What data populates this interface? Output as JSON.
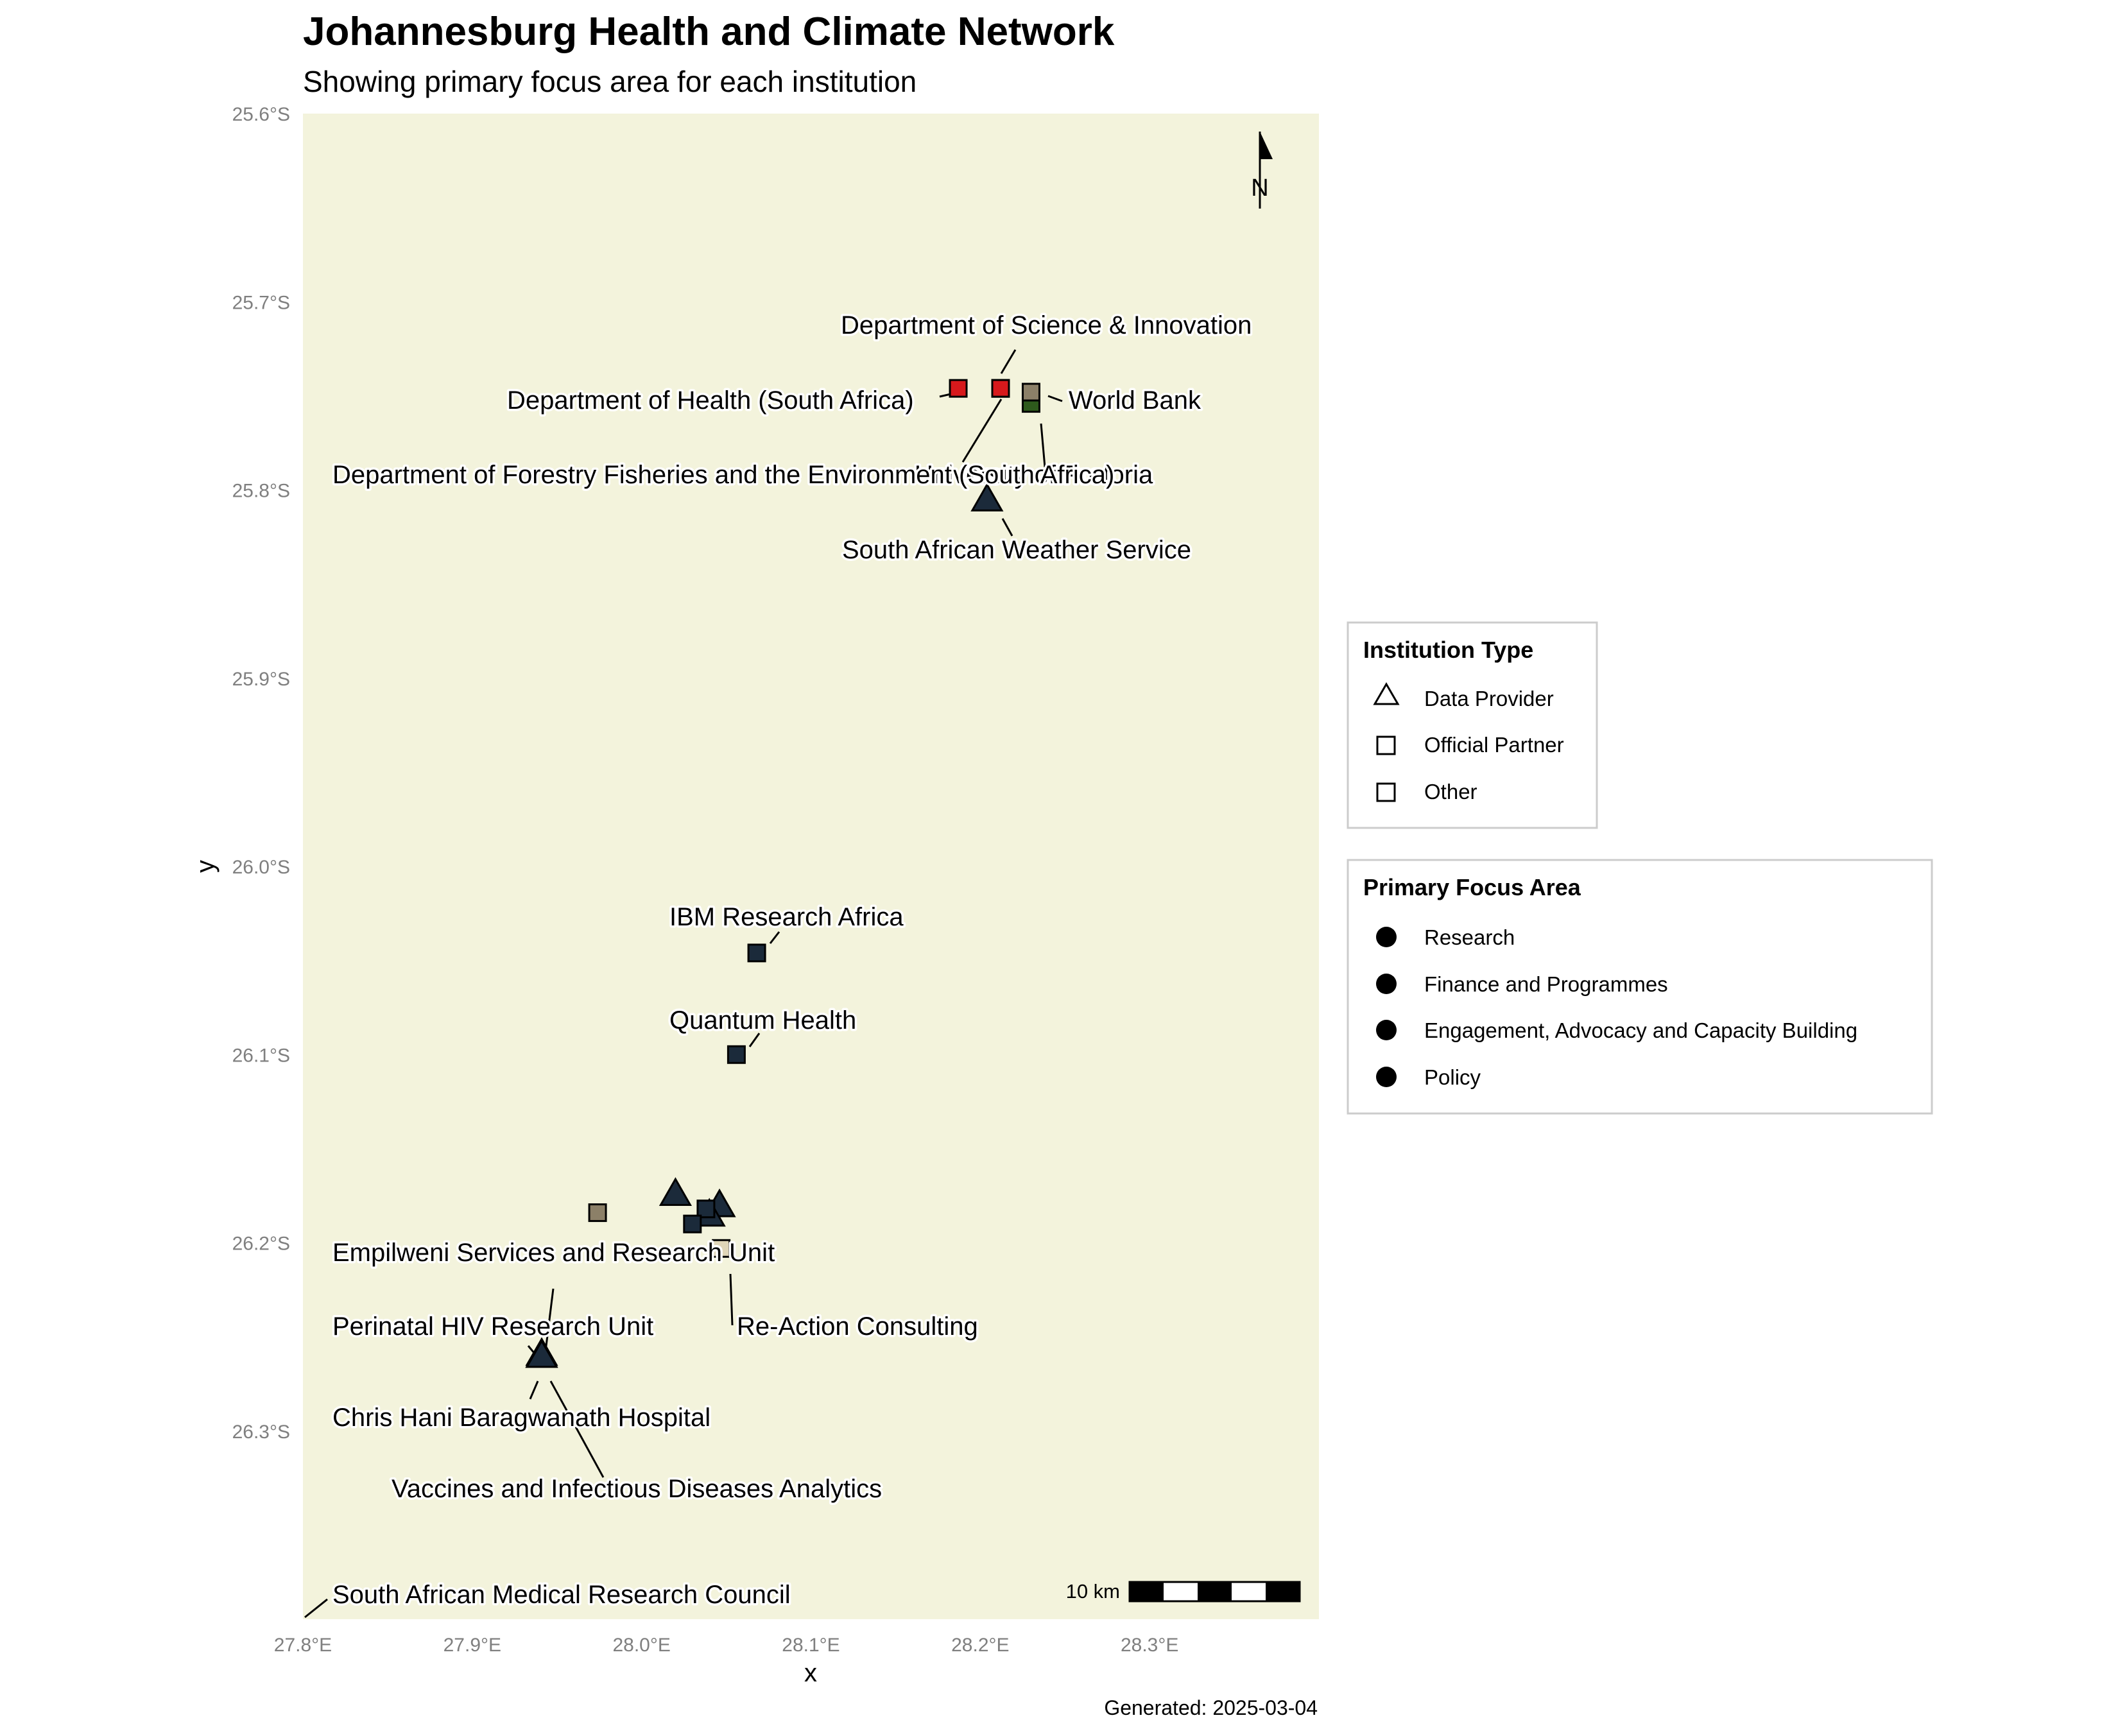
{
  "title": "Johannesburg Health and Climate Network",
  "subtitle": "Showing primary focus area for each institution",
  "caption": "Generated: 2025-03-04",
  "axes": {
    "x_title": "x",
    "y_title": "y",
    "lon_range": [
      27.8,
      28.4
    ],
    "lat_range": [
      -26.4,
      -25.6
    ],
    "x_ticks": [
      {
        "value": 27.8,
        "label": "27.8°E"
      },
      {
        "value": 27.9,
        "label": "27.9°E"
      },
      {
        "value": 28.0,
        "label": "28.0°E"
      },
      {
        "value": 28.1,
        "label": "28.1°E"
      },
      {
        "value": 28.2,
        "label": "28.2°E"
      },
      {
        "value": 28.3,
        "label": "28.3°E"
      }
    ],
    "y_ticks": [
      {
        "value": -25.6,
        "label": "25.6°S"
      },
      {
        "value": -25.7,
        "label": "25.7°S"
      },
      {
        "value": -25.8,
        "label": "25.8°S"
      },
      {
        "value": -25.9,
        "label": "25.9°S"
      },
      {
        "value": -26.0,
        "label": "26.0°S"
      },
      {
        "value": -26.1,
        "label": "26.1°S"
      },
      {
        "value": -26.2,
        "label": "26.2°S"
      },
      {
        "value": -26.3,
        "label": "26.3°S"
      }
    ]
  },
  "colors": {
    "panel_background": "#f3f3dc",
    "navy": "#1b2a3a",
    "red": "#d7191c",
    "taupe": "#8c8068",
    "green": "#2e5a1c",
    "beige": "#e0d6b8"
  },
  "north_arrow": {
    "label": "N"
  },
  "scale_bar": {
    "label": "10 km"
  },
  "institutions": [
    {
      "name": "Department of Science & Innovation",
      "lon": 28.212,
      "lat": -25.746,
      "type": "Official Partner",
      "color": "#d7191c"
    },
    {
      "name": "Department of Health (South Africa)",
      "lon": 28.187,
      "lat": -25.746,
      "type": "Official Partner",
      "color": "#d7191c"
    },
    {
      "name": "World Bank",
      "lon": 28.23,
      "lat": -25.748,
      "type": "Other",
      "color": "#8c8068"
    },
    {
      "name": "University of Pretoria",
      "lon": 28.23,
      "lat": -25.754,
      "type": "Other",
      "color": "#2e5a1c"
    },
    {
      "name": "Department of Forestry Fisheries and the Environment (South Africa)",
      "lon": 28.212,
      "lat": -25.746,
      "type": "Official Partner",
      "color": "#d7191c"
    },
    {
      "name": "South African Weather Service",
      "lon": 28.204,
      "lat": -25.805,
      "type": "Data Provider",
      "color": "#1b2a3a"
    },
    {
      "name": "IBM Research Africa",
      "lon": 28.068,
      "lat": -26.046,
      "type": "Official Partner",
      "color": "#1b2a3a"
    },
    {
      "name": "Quantum Health",
      "lon": 28.056,
      "lat": -26.1,
      "type": "Official Partner",
      "color": "#1b2a3a"
    },
    {
      "name": "Empilweni Services and Research Unit",
      "lon": 27.974,
      "lat": -26.184,
      "type": "Other",
      "color": "#8c8068"
    },
    {
      "name": "Re-Action Consulting",
      "lon": 28.047,
      "lat": -26.203,
      "type": "Other",
      "color": "#e0d6b8"
    },
    {
      "name": "Perinatal HIV Research Unit",
      "lon": 27.941,
      "lat": -26.259,
      "type": "Data Provider",
      "color": "#1b2a3a"
    },
    {
      "name": "Chris Hani Baragwanath Hospital",
      "lon": 27.941,
      "lat": -26.26,
      "type": "Data Provider",
      "color": "#1b2a3a"
    },
    {
      "name": "Vaccines and Infectious Diseases Analytics",
      "lon": 27.941,
      "lat": -26.26,
      "type": "Data Provider",
      "color": "#1b2a3a"
    },
    {
      "name": "South African Medical Research Council",
      "lon": 27.8,
      "lat": -26.4,
      "type": "Other",
      "color": "#1b2a3a"
    },
    {
      "name": "",
      "lon": 28.02,
      "lat": -26.174,
      "type": "Data Provider",
      "color": "#1b2a3a"
    },
    {
      "name": "",
      "lon": 28.046,
      "lat": -26.18,
      "type": "Data Provider",
      "color": "#1b2a3a"
    },
    {
      "name": "",
      "lon": 28.04,
      "lat": -26.185,
      "type": "Data Provider",
      "color": "#1b2a3a"
    },
    {
      "name": "",
      "lon": 28.038,
      "lat": -26.182,
      "type": "Official Partner",
      "color": "#1b2a3a"
    },
    {
      "name": "",
      "lon": 28.03,
      "lat": -26.19,
      "type": "Official Partner",
      "color": "#1b2a3a"
    }
  ],
  "legend_type": {
    "title": "Institution Type",
    "items": [
      {
        "label": "Data Provider",
        "shape": "triangle"
      },
      {
        "label": "Official Partner",
        "shape": "square"
      },
      {
        "label": "Other",
        "shape": "square"
      }
    ]
  },
  "legend_focus": {
    "title": "Primary Focus Area",
    "items": [
      {
        "label": "Research"
      },
      {
        "label": "Finance and Programmes"
      },
      {
        "label": "Engagement, Advocacy and Capacity Building"
      },
      {
        "label": "Policy"
      }
    ]
  }
}
